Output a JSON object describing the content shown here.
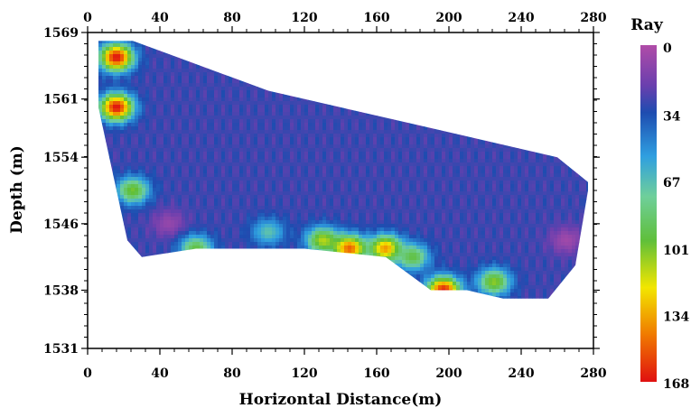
{
  "chart_data": {
    "type": "heatmap",
    "title": "",
    "xlabel": "Horizontal Distance(m)",
    "ylabel": "Depth (m)",
    "xlim": [
      0,
      280
    ],
    "ylim": [
      1531,
      1569
    ],
    "x_ticks": [
      "0",
      "40",
      "80",
      "120",
      "160",
      "200",
      "240",
      "280"
    ],
    "y_ticks": [
      "1569",
      "1561",
      "1554",
      "1546",
      "1538",
      "1531"
    ],
    "colorbar": {
      "title": "Ray",
      "min": 0,
      "max": 168,
      "ticks": [
        "0",
        "34",
        "67",
        "101",
        "134",
        "168"
      ],
      "colors": [
        "#b04ca8",
        "#5a48b0",
        "#1e4cb0",
        "#2f9fe0",
        "#5fbf3a",
        "#f2e600",
        "#f07a00",
        "#e01010"
      ]
    },
    "coverage_outline": {
      "top": [
        [
          6,
          1568
        ],
        [
          25,
          1568
        ],
        [
          50,
          1566
        ],
        [
          75,
          1564
        ],
        [
          100,
          1562
        ],
        [
          140,
          1560
        ],
        [
          180,
          1558
        ],
        [
          220,
          1556
        ],
        [
          260,
          1554
        ],
        [
          277,
          1551
        ]
      ],
      "bottom": [
        [
          277,
          1550
        ],
        [
          270,
          1541
        ],
        [
          255,
          1537
        ],
        [
          230,
          1537
        ],
        [
          210,
          1538
        ],
        [
          190,
          1538
        ],
        [
          165,
          1542
        ],
        [
          120,
          1543
        ],
        [
          60,
          1543
        ],
        [
          30,
          1542
        ],
        [
          22,
          1544
        ],
        [
          6,
          1560
        ]
      ]
    },
    "anomalies": [
      {
        "x": 16,
        "y": 1566,
        "value": 168
      },
      {
        "x": 16,
        "y": 1560,
        "value": 168
      },
      {
        "x": 25,
        "y": 1550,
        "value": 101
      },
      {
        "x": 45,
        "y": 1546,
        "value": 8
      },
      {
        "x": 60,
        "y": 1543,
        "value": 95
      },
      {
        "x": 100,
        "y": 1545,
        "value": 70
      },
      {
        "x": 130,
        "y": 1544,
        "value": 110
      },
      {
        "x": 145,
        "y": 1543,
        "value": 150
      },
      {
        "x": 165,
        "y": 1543,
        "value": 140
      },
      {
        "x": 180,
        "y": 1542,
        "value": 95
      },
      {
        "x": 197,
        "y": 1538,
        "value": 165
      },
      {
        "x": 225,
        "y": 1539,
        "value": 105
      },
      {
        "x": 265,
        "y": 1544,
        "value": 5
      }
    ]
  }
}
